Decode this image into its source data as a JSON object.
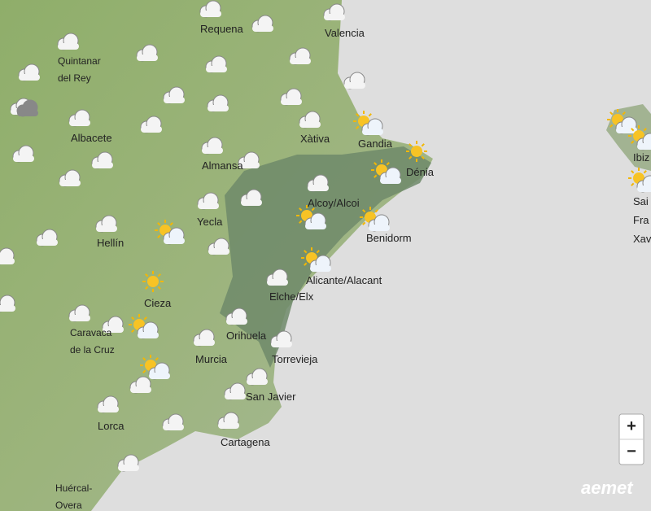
{
  "map": {
    "places": [
      [
        "Requena"
      ],
      [
        "Valencia"
      ],
      [
        "Quintanar",
        "del Rey"
      ],
      [
        "Albacete"
      ],
      [
        "Xàtiva"
      ],
      [
        "Gandia"
      ],
      [
        "Almansa"
      ],
      [
        "Dénia"
      ],
      [
        "Alcoy/Alcoi"
      ],
      [
        "Yecla"
      ],
      [
        "Hellín"
      ],
      [
        "Benidorm"
      ],
      [
        "Alicante/Alacant"
      ],
      [
        "Elche/Elx"
      ],
      [
        "Cieza"
      ],
      [
        "Caravaca",
        "de la Cruz"
      ],
      [
        "Orihuela"
      ],
      [
        "Murcia"
      ],
      [
        "Torrevieja"
      ],
      [
        "San Javier"
      ],
      [
        "Lorca"
      ],
      [
        "Cartagena"
      ],
      [
        "Huércal-",
        "Overa"
      ],
      [
        "Ibiz"
      ],
      [
        "Sai"
      ],
      [
        "Fra"
      ],
      [
        "Xav"
      ]
    ]
  },
  "controls": {
    "zoom_in": "+",
    "zoom_out": "−"
  },
  "logo": "aemet"
}
